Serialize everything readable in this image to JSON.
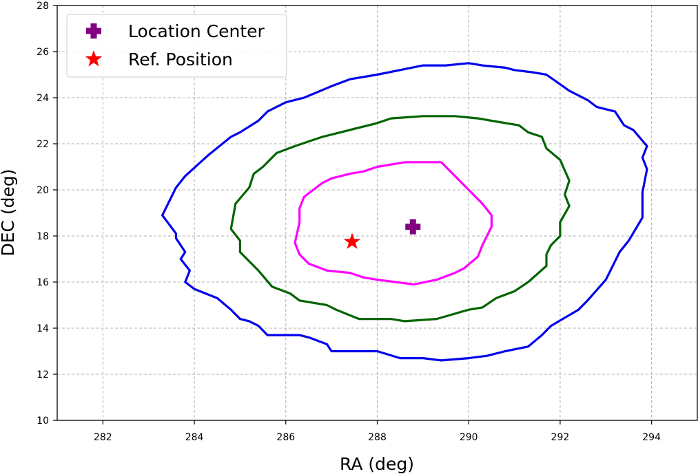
{
  "chart_data": {
    "type": "scatter",
    "title": "",
    "xlabel": "RA (deg)",
    "ylabel": "DEC (deg)",
    "xlim": [
      281,
      295
    ],
    "ylim": [
      10,
      28
    ],
    "xticks": [
      282,
      284,
      286,
      288,
      290,
      292,
      294
    ],
    "yticks": [
      10,
      12,
      14,
      16,
      18,
      20,
      22,
      24,
      26,
      28
    ],
    "grid": true,
    "legend_position": "top-left",
    "contours": [
      {
        "color": "#0000ee",
        "points": [
          [
            283.3,
            18.9
          ],
          [
            283.6,
            18.1
          ],
          [
            283.6,
            17.9
          ],
          [
            283.8,
            17.3
          ],
          [
            283.7,
            17.0
          ],
          [
            283.9,
            16.5
          ],
          [
            283.8,
            16.0
          ],
          [
            284.0,
            15.7
          ],
          [
            284.5,
            15.3
          ],
          [
            284.8,
            14.8
          ],
          [
            285.0,
            14.4
          ],
          [
            285.2,
            14.3
          ],
          [
            285.4,
            14.1
          ],
          [
            285.6,
            13.7
          ],
          [
            286.3,
            13.7
          ],
          [
            286.5,
            13.6
          ],
          [
            286.9,
            13.3
          ],
          [
            287.0,
            13.0
          ],
          [
            287.8,
            13.0
          ],
          [
            288.0,
            13.0
          ],
          [
            288.5,
            12.7
          ],
          [
            289.0,
            12.7
          ],
          [
            289.4,
            12.6
          ],
          [
            290.0,
            12.7
          ],
          [
            290.4,
            12.8
          ],
          [
            290.8,
            13.0
          ],
          [
            291.3,
            13.2
          ],
          [
            291.6,
            13.7
          ],
          [
            291.8,
            14.1
          ],
          [
            292.4,
            14.8
          ],
          [
            292.6,
            15.2
          ],
          [
            293.0,
            16.1
          ],
          [
            293.1,
            16.5
          ],
          [
            293.3,
            17.3
          ],
          [
            293.5,
            17.8
          ],
          [
            293.8,
            18.8
          ],
          [
            293.8,
            19.9
          ],
          [
            293.9,
            20.9
          ],
          [
            293.8,
            21.4
          ],
          [
            293.9,
            21.9
          ],
          [
            293.6,
            22.6
          ],
          [
            293.4,
            22.8
          ],
          [
            293.2,
            23.4
          ],
          [
            292.8,
            23.6
          ],
          [
            292.6,
            23.9
          ],
          [
            292.2,
            24.3
          ],
          [
            291.7,
            25.0
          ],
          [
            291.4,
            25.1
          ],
          [
            291.0,
            25.2
          ],
          [
            290.8,
            25.3
          ],
          [
            290.3,
            25.4
          ],
          [
            290.0,
            25.5
          ],
          [
            289.5,
            25.4
          ],
          [
            289.0,
            25.4
          ],
          [
            288.5,
            25.2
          ],
          [
            288.0,
            25.0
          ],
          [
            287.4,
            24.8
          ],
          [
            287.0,
            24.5
          ],
          [
            286.4,
            24.0
          ],
          [
            286.0,
            23.8
          ],
          [
            285.6,
            23.4
          ],
          [
            285.4,
            23.0
          ],
          [
            285.0,
            22.5
          ],
          [
            284.8,
            22.3
          ],
          [
            284.3,
            21.5
          ],
          [
            283.8,
            20.6
          ],
          [
            283.6,
            20.1
          ],
          [
            283.3,
            18.9
          ]
        ]
      },
      {
        "color": "#006400",
        "points": [
          [
            284.8,
            18.3
          ],
          [
            285.0,
            17.8
          ],
          [
            285.0,
            17.3
          ],
          [
            285.4,
            16.5
          ],
          [
            285.7,
            15.8
          ],
          [
            286.1,
            15.5
          ],
          [
            286.3,
            15.2
          ],
          [
            286.9,
            15.0
          ],
          [
            287.1,
            14.8
          ],
          [
            287.6,
            14.4
          ],
          [
            288.0,
            14.4
          ],
          [
            288.3,
            14.4
          ],
          [
            288.6,
            14.3
          ],
          [
            289.3,
            14.4
          ],
          [
            290.0,
            14.8
          ],
          [
            290.3,
            14.9
          ],
          [
            290.6,
            15.3
          ],
          [
            291.0,
            15.6
          ],
          [
            291.3,
            16.0
          ],
          [
            291.7,
            16.7
          ],
          [
            291.7,
            17.2
          ],
          [
            291.8,
            17.6
          ],
          [
            292.0,
            18.0
          ],
          [
            292.0,
            18.6
          ],
          [
            292.2,
            19.3
          ],
          [
            292.1,
            19.8
          ],
          [
            292.2,
            20.4
          ],
          [
            292.0,
            21.3
          ],
          [
            291.7,
            21.8
          ],
          [
            291.6,
            22.3
          ],
          [
            291.3,
            22.5
          ],
          [
            291.1,
            22.8
          ],
          [
            290.5,
            23.0
          ],
          [
            290.2,
            23.1
          ],
          [
            289.7,
            23.2
          ],
          [
            289.0,
            23.2
          ],
          [
            288.3,
            23.1
          ],
          [
            288.0,
            22.9
          ],
          [
            287.4,
            22.6
          ],
          [
            286.8,
            22.3
          ],
          [
            286.2,
            21.9
          ],
          [
            285.8,
            21.6
          ],
          [
            285.5,
            21.0
          ],
          [
            285.3,
            20.7
          ],
          [
            285.2,
            20.1
          ],
          [
            284.9,
            19.4
          ],
          [
            284.8,
            18.3
          ]
        ]
      },
      {
        "color": "#ff00ff",
        "points": [
          [
            286.2,
            17.7
          ],
          [
            286.3,
            17.2
          ],
          [
            286.5,
            16.8
          ],
          [
            286.9,
            16.5
          ],
          [
            287.4,
            16.4
          ],
          [
            287.7,
            16.2
          ],
          [
            288.0,
            16.1
          ],
          [
            288.4,
            16.0
          ],
          [
            288.8,
            15.9
          ],
          [
            289.3,
            16.1
          ],
          [
            289.7,
            16.4
          ],
          [
            289.9,
            16.6
          ],
          [
            290.2,
            17.1
          ],
          [
            290.3,
            17.6
          ],
          [
            290.5,
            18.4
          ],
          [
            290.5,
            18.9
          ],
          [
            290.3,
            19.4
          ],
          [
            290.0,
            20.0
          ],
          [
            289.7,
            20.6
          ],
          [
            289.4,
            21.2
          ],
          [
            289.0,
            21.2
          ],
          [
            288.6,
            21.2
          ],
          [
            288.0,
            21.0
          ],
          [
            287.7,
            20.8
          ],
          [
            287.4,
            20.7
          ],
          [
            287.0,
            20.5
          ],
          [
            286.8,
            20.3
          ],
          [
            286.6,
            20.0
          ],
          [
            286.4,
            19.7
          ],
          [
            286.3,
            19.2
          ],
          [
            286.3,
            18.6
          ],
          [
            286.2,
            17.7
          ]
        ]
      }
    ],
    "markers": [
      {
        "name": "Location Center",
        "shape": "plus",
        "color": "#800080",
        "x": 288.78,
        "y": 18.4
      },
      {
        "name": "Ref. Position",
        "shape": "star",
        "color": "#ff0000",
        "x": 287.45,
        "y": 17.75
      }
    ]
  }
}
